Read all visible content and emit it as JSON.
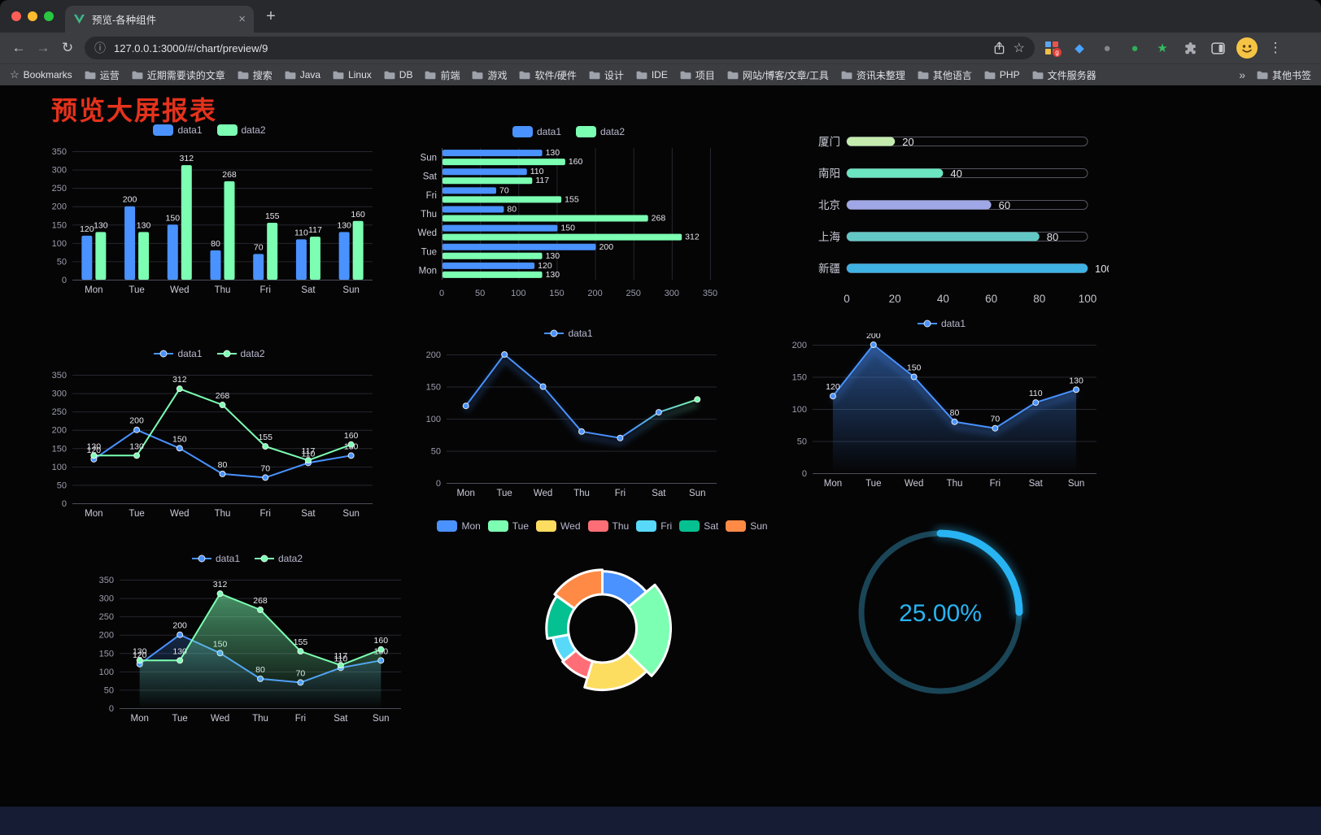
{
  "browser": {
    "tab_title": "预览-各种组件",
    "url": "127.0.0.1:3000/#/chart/preview/9",
    "icons": {
      "back": "←",
      "forward": "→",
      "reload": "↻",
      "close_tab": "×",
      "new_tab": "+",
      "info": "ⓘ",
      "star": "☆",
      "more": "⋮",
      "bookmarks_star": "☆",
      "kite": "◆",
      "gray_circle": "●",
      "green_circle": "●",
      "green_star": "★"
    },
    "extension_badge": "g",
    "bookmarks_bar": {
      "bookmarks_label": "Bookmarks",
      "folders": [
        "运营",
        "近期需要读的文章",
        "搜索",
        "Java",
        "Linux",
        "DB",
        "前端",
        "游戏",
        "软件/硬件",
        "设计",
        "IDE",
        "项目",
        "网站/博客/文章/工具",
        "资讯未整理",
        "其他语言",
        "PHP",
        "文件服务器"
      ],
      "overflow_chevron": "»",
      "other_bookmarks_label": "其他书签"
    }
  },
  "page": {
    "title": "预览大屏报表"
  },
  "palette": {
    "blue": "#4992ff",
    "green": "#7cffb2",
    "yellow": "#fddd60",
    "red": "#ff6e76",
    "lightblue": "#58d9f9",
    "teal": "#05c091",
    "orange": "#ff8a45"
  },
  "chart_data": [
    {
      "id": "bar-vertical",
      "type": "bar",
      "categories": [
        "Mon",
        "Tue",
        "Wed",
        "Thu",
        "Fri",
        "Sat",
        "Sun"
      ],
      "series": [
        {
          "name": "data1",
          "color": "#4992ff",
          "values": [
            120,
            200,
            150,
            80,
            70,
            110,
            130
          ]
        },
        {
          "name": "data2",
          "color": "#7cffb2",
          "values": [
            130,
            130,
            312,
            268,
            155,
            117,
            160
          ]
        }
      ],
      "ylim": [
        0,
        350
      ],
      "yticks": [
        0,
        50,
        100,
        150,
        200,
        250,
        300,
        350
      ],
      "show_labels": true,
      "legend_position": "top"
    },
    {
      "id": "bar-horizontal",
      "type": "bar-horizontal",
      "categories": [
        "Mon",
        "Tue",
        "Wed",
        "Thu",
        "Fri",
        "Sat",
        "Sun"
      ],
      "series": [
        {
          "name": "data1",
          "color": "#4992ff",
          "values": [
            120,
            200,
            150,
            80,
            70,
            110,
            130
          ]
        },
        {
          "name": "data2",
          "color": "#7cffb2",
          "values": [
            130,
            130,
            312,
            268,
            155,
            117,
            160
          ]
        }
      ],
      "xlim": [
        0,
        350
      ],
      "xticks": [
        0,
        50,
        100,
        150,
        200,
        250,
        300,
        350
      ],
      "show_labels": true,
      "legend_position": "top"
    },
    {
      "id": "capsule-progress",
      "type": "capsule-bar",
      "categories": [
        "厦门",
        "南阳",
        "北京",
        "上海",
        "新疆"
      ],
      "values": [
        20,
        40,
        60,
        80,
        100
      ],
      "colors": [
        "#c4ebad",
        "#6be6c1",
        "#a0a7e6",
        "#63c8c5",
        "#3fb1e3"
      ],
      "max": 100,
      "xticks": [
        0,
        20,
        40,
        60,
        80,
        100
      ]
    },
    {
      "id": "line-dual",
      "type": "line",
      "categories": [
        "Mon",
        "Tue",
        "Wed",
        "Thu",
        "Fri",
        "Sat",
        "Sun"
      ],
      "series": [
        {
          "name": "data1",
          "color": "#4992ff",
          "values": [
            120,
            200,
            150,
            80,
            70,
            110,
            130
          ]
        },
        {
          "name": "data2",
          "color": "#7cffb2",
          "values": [
            130,
            130,
            312,
            268,
            155,
            117,
            160
          ]
        }
      ],
      "ylim": [
        0,
        350
      ],
      "yticks": [
        0,
        50,
        100,
        150,
        200,
        250,
        300,
        350
      ],
      "show_labels": true,
      "legend_position": "top"
    },
    {
      "id": "line-gradient",
      "type": "line",
      "categories": [
        "Mon",
        "Tue",
        "Wed",
        "Thu",
        "Fri",
        "Sat",
        "Sun"
      ],
      "series": [
        {
          "name": "data1",
          "color": "#4992ff",
          "color_end": "#7cffb2",
          "values": [
            120,
            200,
            150,
            80,
            70,
            110,
            130
          ]
        }
      ],
      "ylim": [
        0,
        200
      ],
      "yticks": [
        0,
        50,
        100,
        150,
        200
      ],
      "show_labels": false,
      "legend_position": "top"
    },
    {
      "id": "area-single",
      "type": "area",
      "categories": [
        "Mon",
        "Tue",
        "Wed",
        "Thu",
        "Fri",
        "Sat",
        "Sun"
      ],
      "series": [
        {
          "name": "data1",
          "color": "#4992ff",
          "values": [
            120,
            200,
            150,
            80,
            70,
            110,
            130
          ]
        }
      ],
      "ylim": [
        0,
        200
      ],
      "yticks": [
        0,
        50,
        100,
        150,
        200
      ],
      "show_labels": true,
      "legend_position": "top"
    },
    {
      "id": "line-area-dual",
      "type": "line-area",
      "categories": [
        "Mon",
        "Tue",
        "Wed",
        "Thu",
        "Fri",
        "Sat",
        "Sun"
      ],
      "series": [
        {
          "name": "data1",
          "color": "#4992ff",
          "values": [
            120,
            200,
            150,
            80,
            70,
            110,
            130
          ]
        },
        {
          "name": "data2",
          "color": "#7cffb2",
          "values": [
            130,
            130,
            312,
            268,
            155,
            117,
            160
          ]
        }
      ],
      "ylim": [
        0,
        350
      ],
      "yticks": [
        0,
        50,
        100,
        150,
        200,
        250,
        300,
        350
      ],
      "show_labels": true,
      "legend_position": "top"
    },
    {
      "id": "pie-rose",
      "type": "pie",
      "legend": [
        "Mon",
        "Tue",
        "Wed",
        "Thu",
        "Fri",
        "Sat",
        "Sun"
      ],
      "values": [
        120,
        200,
        150,
        80,
        70,
        110,
        130
      ],
      "colors": [
        "#4992ff",
        "#7cffb2",
        "#fddd60",
        "#ff6e76",
        "#58d9f9",
        "#05c091",
        "#ff8a45"
      ],
      "legend_position": "top"
    },
    {
      "id": "gauge-ring",
      "type": "gauge",
      "value_label": "25.00%",
      "percent": 25,
      "color": "#28b4f2",
      "track_color": "#1a4557"
    }
  ]
}
